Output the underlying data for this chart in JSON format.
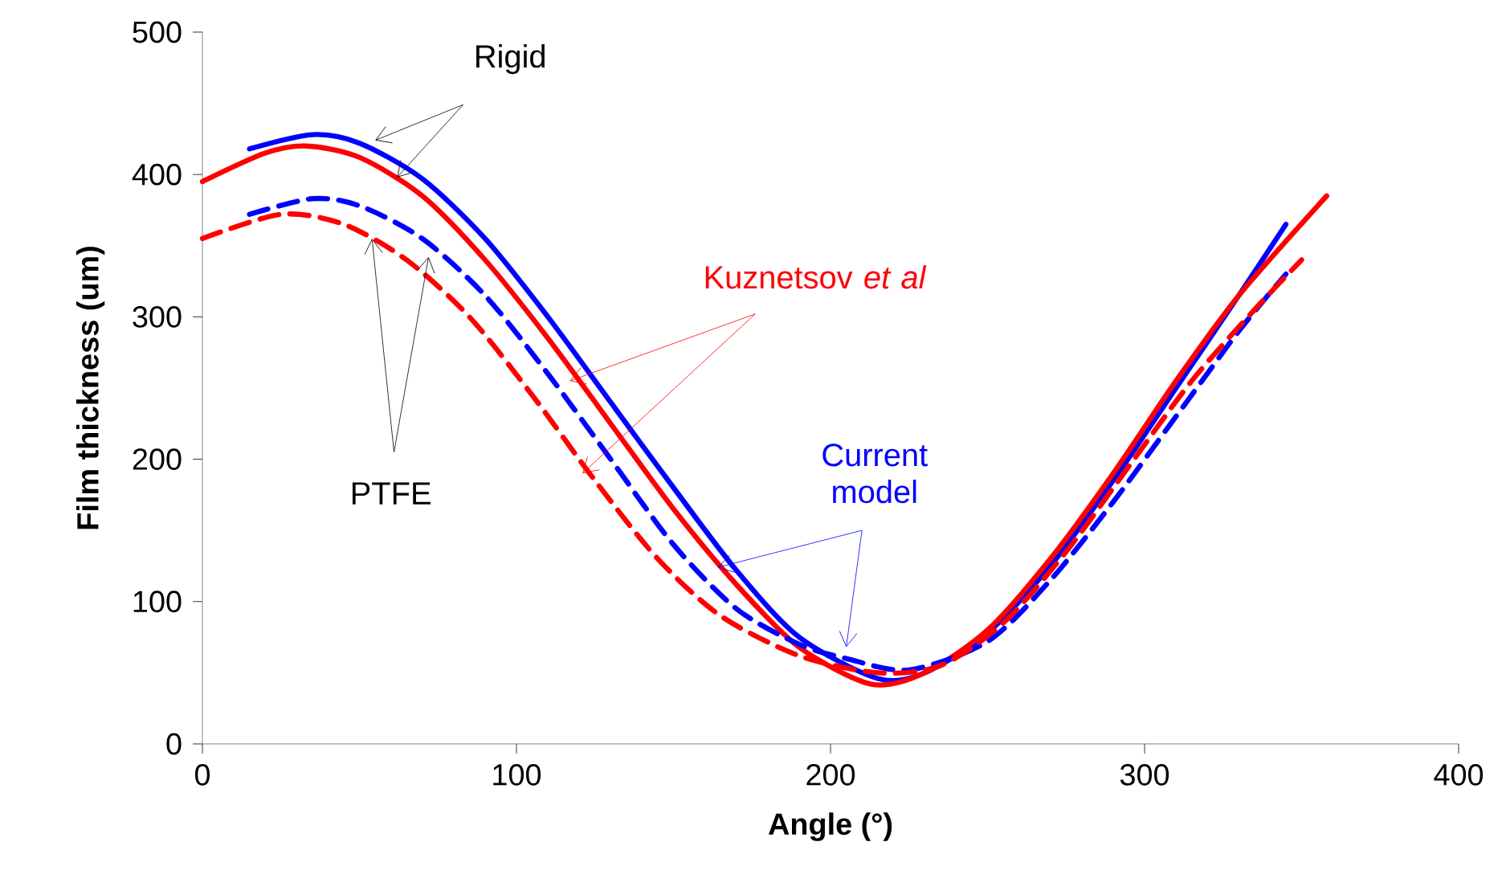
{
  "chart_data": {
    "type": "line",
    "xlabel": "Angle (°)",
    "ylabel": "Film thickness (um)",
    "xlim": [
      0,
      400
    ],
    "xticks": [
      0,
      100,
      200,
      300,
      400
    ],
    "ylim": [
      0,
      500
    ],
    "yticks": [
      0,
      100,
      200,
      300,
      400,
      500
    ],
    "series": [
      {
        "color": "#0000ff",
        "line_style": "solid",
        "x": [
          15,
          35,
          50,
          70,
          90,
          110,
          130,
          150,
          170,
          190,
          215,
          230,
          250,
          270,
          290,
          310,
          330,
          345
        ],
        "values": [
          418,
          428,
          422,
          397,
          355,
          300,
          240,
          180,
          122,
          75,
          46,
          50,
          78,
          125,
          185,
          250,
          315,
          365
        ]
      },
      {
        "color": "#ff0000",
        "line_style": "solid",
        "x": [
          0,
          20,
          33,
          50,
          70,
          90,
          110,
          130,
          150,
          170,
          190,
          213,
          230,
          250,
          270,
          290,
          310,
          330,
          358
        ],
        "values": [
          395,
          415,
          420,
          412,
          385,
          340,
          285,
          225,
          165,
          112,
          68,
          42,
          50,
          80,
          130,
          190,
          255,
          315,
          385
        ]
      },
      {
        "color": "#0000ff",
        "line_style": "dashed",
        "x": [
          15,
          35,
          50,
          70,
          90,
          110,
          130,
          150,
          170,
          190,
          205,
          225,
          250,
          270,
          290,
          310,
          330,
          345
        ],
        "values": [
          372,
          383,
          378,
          355,
          315,
          260,
          200,
          140,
          95,
          70,
          60,
          52,
          72,
          115,
          170,
          230,
          290,
          330
        ]
      },
      {
        "color": "#ff0000",
        "line_style": "dashed",
        "x": [
          0,
          25,
          45,
          65,
          85,
          105,
          125,
          145,
          165,
          190,
          215,
          235,
          255,
          275,
          295,
          315,
          335,
          350
        ],
        "values": [
          355,
          372,
          365,
          340,
          300,
          245,
          185,
          130,
          90,
          62,
          50,
          55,
          85,
          135,
          195,
          255,
          305,
          340
        ]
      }
    ],
    "annotations": [
      {
        "text": "Rigid",
        "x": 55,
        "y": 424
      },
      {
        "text": "PTFE",
        "x": 54,
        "y": 355
      },
      {
        "text": "Kuznetsov *et al*",
        "x": 117,
        "y": 255
      },
      {
        "text": "Current model",
        "x": 164,
        "y": 124
      }
    ]
  }
}
